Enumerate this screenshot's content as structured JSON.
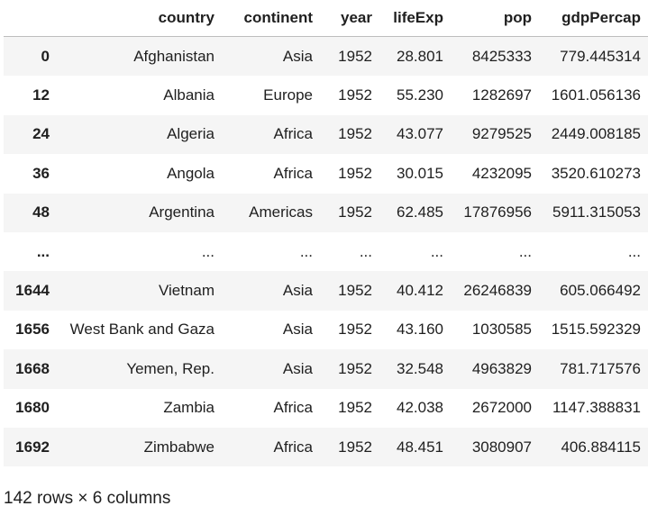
{
  "table": {
    "columns": [
      "",
      "country",
      "continent",
      "year",
      "lifeExp",
      "pop",
      "gdpPercap"
    ],
    "rows": [
      {
        "index": "0",
        "country": "Afghanistan",
        "continent": "Asia",
        "year": "1952",
        "lifeExp": "28.801",
        "pop": "8425333",
        "gdpPercap": "779.445314"
      },
      {
        "index": "12",
        "country": "Albania",
        "continent": "Europe",
        "year": "1952",
        "lifeExp": "55.230",
        "pop": "1282697",
        "gdpPercap": "1601.056136"
      },
      {
        "index": "24",
        "country": "Algeria",
        "continent": "Africa",
        "year": "1952",
        "lifeExp": "43.077",
        "pop": "9279525",
        "gdpPercap": "2449.008185"
      },
      {
        "index": "36",
        "country": "Angola",
        "continent": "Africa",
        "year": "1952",
        "lifeExp": "30.015",
        "pop": "4232095",
        "gdpPercap": "3520.610273"
      },
      {
        "index": "48",
        "country": "Argentina",
        "continent": "Americas",
        "year": "1952",
        "lifeExp": "62.485",
        "pop": "17876956",
        "gdpPercap": "5911.315053"
      },
      {
        "index": "...",
        "country": "...",
        "continent": "...",
        "year": "...",
        "lifeExp": "...",
        "pop": "...",
        "gdpPercap": "..."
      },
      {
        "index": "1644",
        "country": "Vietnam",
        "continent": "Asia",
        "year": "1952",
        "lifeExp": "40.412",
        "pop": "26246839",
        "gdpPercap": "605.066492"
      },
      {
        "index": "1656",
        "country": "West Bank and Gaza",
        "continent": "Asia",
        "year": "1952",
        "lifeExp": "43.160",
        "pop": "1030585",
        "gdpPercap": "1515.592329"
      },
      {
        "index": "1668",
        "country": "Yemen, Rep.",
        "continent": "Asia",
        "year": "1952",
        "lifeExp": "32.548",
        "pop": "4963829",
        "gdpPercap": "781.717576"
      },
      {
        "index": "1680",
        "country": "Zambia",
        "continent": "Africa",
        "year": "1952",
        "lifeExp": "42.038",
        "pop": "2672000",
        "gdpPercap": "1147.388831"
      },
      {
        "index": "1692",
        "country": "Zimbabwe",
        "continent": "Africa",
        "year": "1952",
        "lifeExp": "48.451",
        "pop": "3080907",
        "gdpPercap": "406.884115"
      }
    ]
  },
  "footer": {
    "text": "142 rows × 6 columns"
  }
}
